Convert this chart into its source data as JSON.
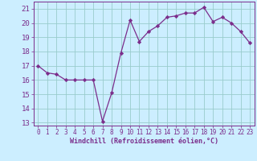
{
  "x": [
    0,
    1,
    2,
    3,
    4,
    5,
    6,
    7,
    8,
    9,
    10,
    11,
    12,
    13,
    14,
    15,
    16,
    17,
    18,
    19,
    20,
    21,
    22,
    23
  ],
  "y": [
    17.0,
    16.5,
    16.4,
    16.0,
    16.0,
    16.0,
    16.0,
    13.1,
    15.1,
    17.9,
    20.2,
    18.7,
    19.4,
    19.8,
    20.4,
    20.5,
    20.7,
    20.7,
    21.1,
    20.1,
    20.4,
    20.0,
    19.4,
    18.6
  ],
  "line_color": "#7b2d8b",
  "marker": "D",
  "marker_size": 2.2,
  "bg_color": "#cceeff",
  "grid_color": "#99cccc",
  "xlabel": "Windchill (Refroidissement éolien,°C)",
  "xlabel_color": "#7b2d8b",
  "tick_color": "#7b2d8b",
  "ylim": [
    12.8,
    21.5
  ],
  "xlim": [
    -0.5,
    23.5
  ],
  "yticks": [
    13,
    14,
    15,
    16,
    17,
    18,
    19,
    20,
    21
  ],
  "xticks": [
    0,
    1,
    2,
    3,
    4,
    5,
    6,
    7,
    8,
    9,
    10,
    11,
    12,
    13,
    14,
    15,
    16,
    17,
    18,
    19,
    20,
    21,
    22,
    23
  ]
}
